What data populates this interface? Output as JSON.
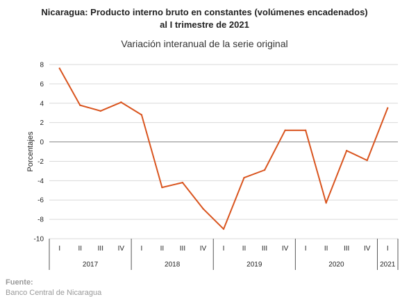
{
  "chart_data": {
    "type": "line",
    "title_line1": "Nicaragua: Producto interno bruto en constantes (volúmenes encadenados)",
    "title_line2": "al I trimestre de 2021",
    "subtitle": "Variación interanual de la serie original",
    "ylabel": "Porcentajes",
    "ylim": [
      -10,
      8
    ],
    "yticks": [
      8,
      6,
      4,
      2,
      0,
      -2,
      -4,
      -6,
      -8,
      -10
    ],
    "grid": true,
    "line_color": "#d9541e",
    "quarters": [
      "I",
      "II",
      "III",
      "IV",
      "I",
      "II",
      "III",
      "IV",
      "I",
      "II",
      "III",
      "IV",
      "I",
      "II",
      "III",
      "IV",
      "I"
    ],
    "years": [
      {
        "label": "2017",
        "count": 4
      },
      {
        "label": "2018",
        "count": 4
      },
      {
        "label": "2019",
        "count": 4
      },
      {
        "label": "2020",
        "count": 4
      },
      {
        "label": "2021",
        "count": 1
      }
    ],
    "values": [
      7.6,
      3.8,
      3.2,
      4.1,
      2.8,
      -4.7,
      -4.2,
      -6.9,
      -9.0,
      -3.7,
      -2.9,
      1.2,
      1.2,
      -6.3,
      -0.9,
      -1.9,
      3.5
    ]
  },
  "source": {
    "label": "Fuente:",
    "text": "Banco Central de Nicaragua"
  }
}
